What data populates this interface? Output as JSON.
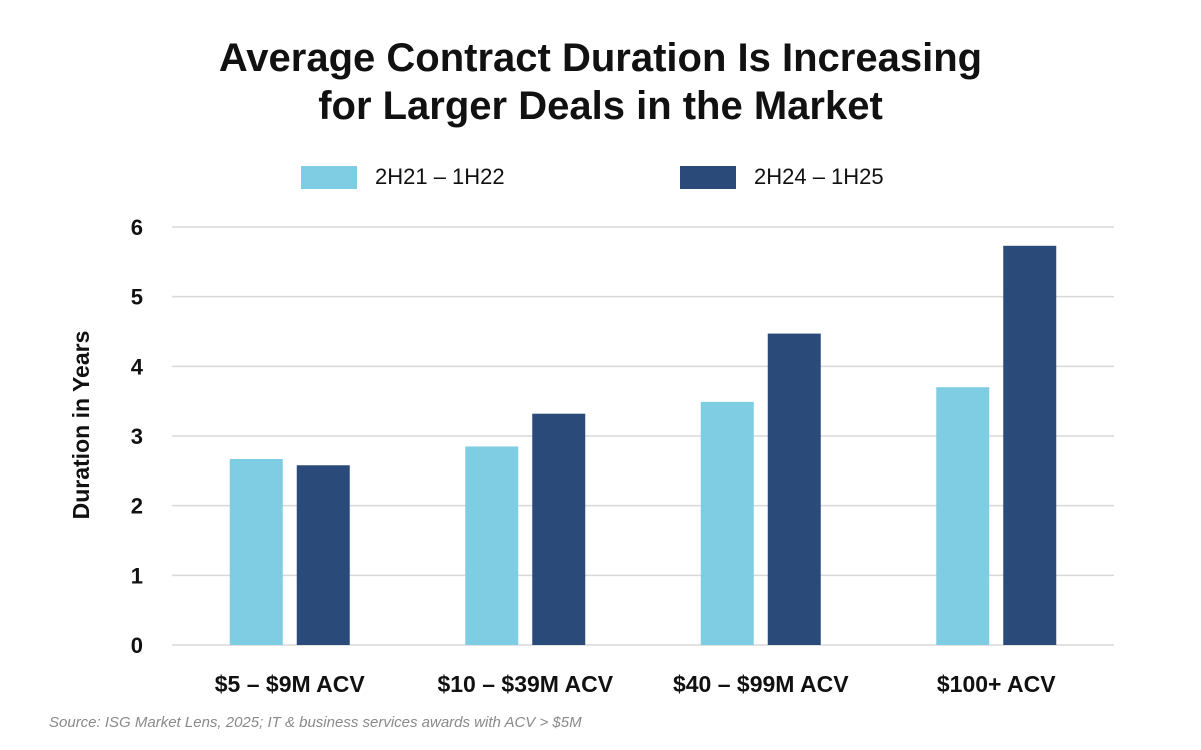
{
  "chart_data": {
    "type": "bar",
    "title_lines": [
      "Average Contract Duration Is Increasing",
      "for Larger Deals in the Market"
    ],
    "categories": [
      "$5 – $9M ACV",
      "$10 – $39M ACV",
      "$40 – $99M ACV",
      "$100+ ACV"
    ],
    "series": [
      {
        "name": "2H21 – 1H22",
        "color": "#7ECDE3",
        "values": [
          2.67,
          2.85,
          3.49,
          3.7
        ]
      },
      {
        "name": "2H24 – 1H25",
        "color": "#2A4A7A",
        "values": [
          2.58,
          3.32,
          4.47,
          5.73
        ]
      }
    ],
    "ylabel": "Duration in Years",
    "xlabel": "",
    "ylim": [
      0,
      6
    ],
    "yticks": [
      "0",
      "1",
      "2",
      "3",
      "4",
      "5",
      "6"
    ],
    "grid": true,
    "legend_position": "top-center"
  },
  "source": "Source: ISG Market Lens, 2025; IT & business services awards with ACV > $5M"
}
